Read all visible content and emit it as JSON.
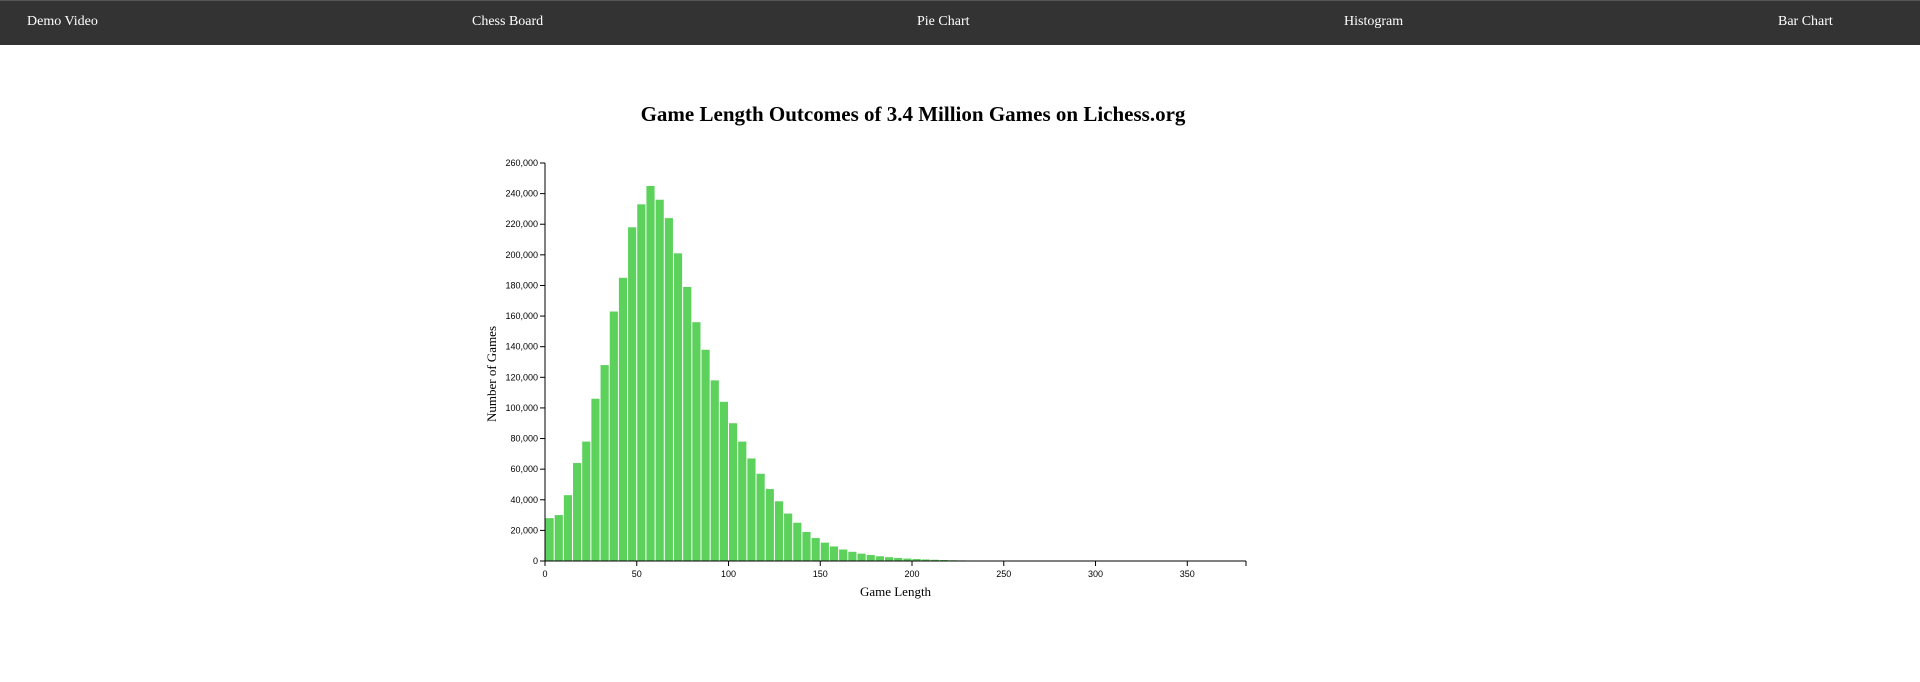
{
  "nav": {
    "items": [
      {
        "label": "Demo Video"
      },
      {
        "label": "Chess Board"
      },
      {
        "label": "Pie Chart"
      },
      {
        "label": "Histogram"
      },
      {
        "label": "Bar Chart"
      }
    ]
  },
  "colors": {
    "navbar": "#333333",
    "bar": "#5cd15c"
  },
  "chart_data": {
    "type": "bar",
    "title": "Game Length Outcomes of 3.4 Million Games on Lichess.org",
    "xlabel": "Game Length",
    "ylabel": "Number of Games",
    "xlim": [
      0,
      382
    ],
    "ylim": [
      0,
      260000
    ],
    "bin_width": 5,
    "xticks": [
      "0",
      "50",
      "100",
      "150",
      "200",
      "250",
      "300",
      "350"
    ],
    "yticks": [
      "0",
      "20,000",
      "40,000",
      "60,000",
      "80,000",
      "100,000",
      "120,000",
      "140,000",
      "160,000",
      "180,000",
      "200,000",
      "220,000",
      "240,000",
      "260,000"
    ],
    "grid": false,
    "bins_start": [
      0,
      5,
      10,
      15,
      20,
      25,
      30,
      35,
      40,
      45,
      50,
      55,
      60,
      65,
      70,
      75,
      80,
      85,
      90,
      95,
      100,
      105,
      110,
      115,
      120,
      125,
      130,
      135,
      140,
      145,
      150,
      155,
      160,
      165,
      170,
      175,
      180,
      185,
      190,
      195,
      200,
      205,
      210,
      215,
      220,
      225,
      230,
      235,
      240,
      245
    ],
    "values": [
      28000,
      30000,
      43000,
      64000,
      78000,
      106000,
      128000,
      163000,
      185000,
      218000,
      233000,
      245000,
      236000,
      224000,
      201000,
      179000,
      156000,
      138000,
      118000,
      104000,
      90000,
      78000,
      67000,
      57000,
      47000,
      39000,
      31000,
      25000,
      19000,
      15000,
      12000,
      9500,
      7500,
      6000,
      4800,
      3900,
      3100,
      2500,
      2000,
      1600,
      1300,
      1000,
      800,
      650,
      500,
      400,
      300,
      250,
      200,
      150
    ]
  }
}
